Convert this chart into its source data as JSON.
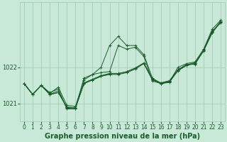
{
  "bg_color": "#c8e8d8",
  "grid_color": "#a0c8b0",
  "line_color": "#1a5c2a",
  "xlabel": "Graphe pression niveau de la mer (hPa)",
  "xlabel_fontsize": 7,
  "tick_fontsize": 5.5,
  "xlim": [
    -0.5,
    23.5
  ],
  "ylim": [
    1020.5,
    1023.8
  ],
  "yticks": [
    1021,
    1022
  ],
  "xticks": [
    0,
    1,
    2,
    3,
    4,
    5,
    6,
    7,
    8,
    9,
    10,
    11,
    12,
    13,
    14,
    15,
    16,
    17,
    18,
    19,
    20,
    21,
    22,
    23
  ],
  "series": [
    [
      1021.55,
      1021.25,
      1021.5,
      1021.3,
      1021.4,
      1020.85,
      1020.85,
      1021.7,
      1021.8,
      1022.0,
      1022.6,
      1022.85,
      1022.6,
      1022.6,
      1022.35,
      1021.7,
      1021.55,
      1021.6,
      1022.0,
      1022.1,
      1022.15,
      1022.5,
      1023.05,
      1023.3
    ],
    [
      1021.55,
      1021.25,
      1021.5,
      1021.25,
      1021.3,
      1020.9,
      1020.88,
      1021.55,
      1021.65,
      1021.75,
      1021.8,
      1021.8,
      1021.85,
      1021.95,
      1022.1,
      1021.65,
      1021.55,
      1021.6,
      1021.9,
      1022.05,
      1022.1,
      1022.45,
      1022.95,
      1023.25
    ],
    [
      1021.55,
      1021.25,
      1021.5,
      1021.25,
      1021.3,
      1020.9,
      1020.88,
      1021.55,
      1021.65,
      1021.75,
      1021.82,
      1021.82,
      1021.88,
      1021.98,
      1022.12,
      1021.68,
      1021.57,
      1021.63,
      1021.93,
      1022.07,
      1022.12,
      1022.47,
      1022.97,
      1023.27
    ],
    [
      1021.55,
      1021.25,
      1021.5,
      1021.25,
      1021.35,
      1020.87,
      1020.86,
      1021.57,
      1021.67,
      1021.77,
      1021.83,
      1021.83,
      1021.87,
      1021.97,
      1022.11,
      1021.67,
      1021.56,
      1021.62,
      1021.92,
      1022.06,
      1022.11,
      1022.46,
      1022.96,
      1023.26
    ],
    [
      1021.55,
      1021.25,
      1021.5,
      1021.28,
      1021.45,
      1020.95,
      1020.92,
      1021.65,
      1021.8,
      1021.85,
      1021.88,
      1022.6,
      1022.5,
      1022.55,
      1022.3,
      1021.62,
      1021.55,
      1021.58,
      1021.93,
      1022.08,
      1022.08,
      1022.48,
      1023.0,
      1023.22
    ]
  ]
}
